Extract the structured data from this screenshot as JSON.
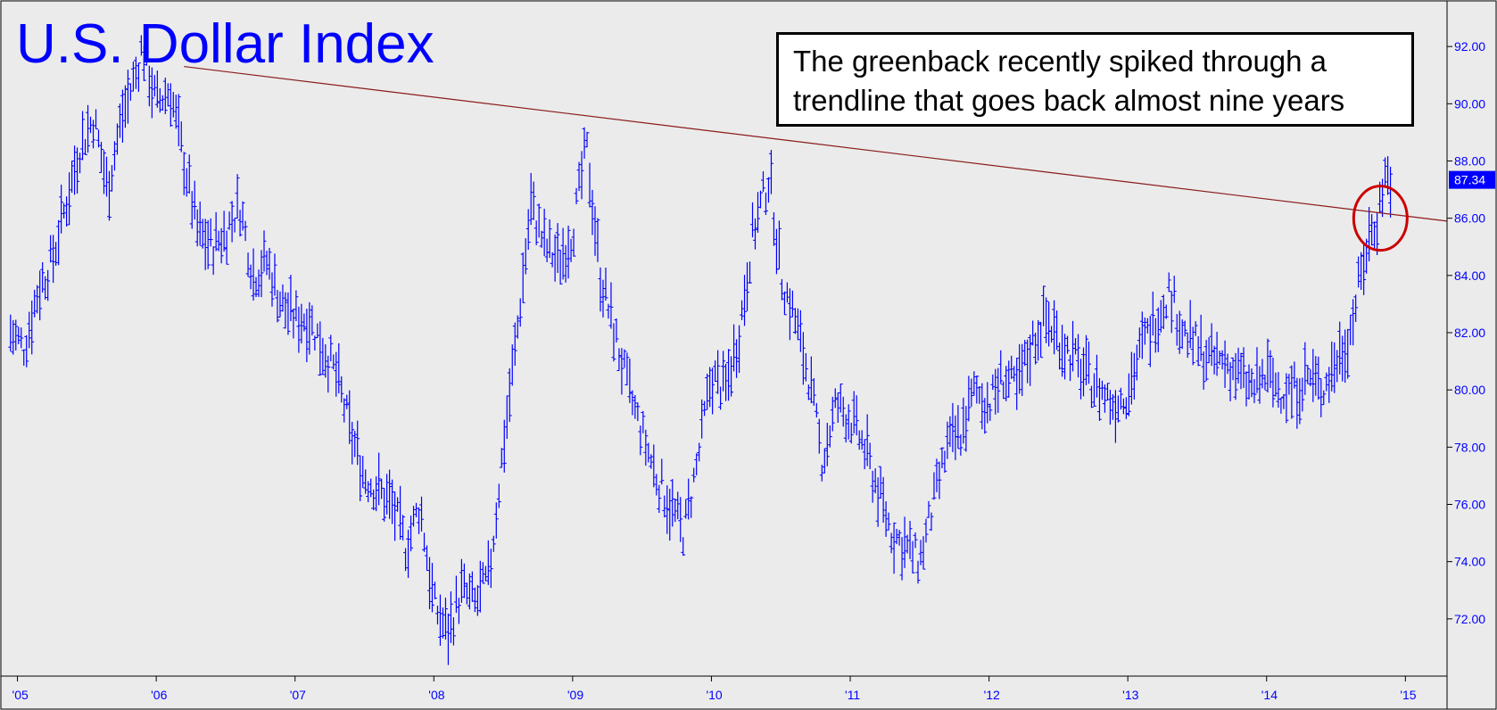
{
  "chart_data": {
    "type": "line",
    "title": "U.S. Dollar Index",
    "annotation": [
      "The greenback recently spiked through a",
      "trendline that goes back almost nine years"
    ],
    "xlabel": "",
    "ylabel": "",
    "x_ticks": [
      "'05",
      "'06",
      "'07",
      "'08",
      "'09",
      "'10",
      "'11",
      "'12",
      "'13",
      "'14",
      "'15"
    ],
    "y_ticks": [
      "72.00",
      "74.00",
      "76.00",
      "78.00",
      "80.00",
      "82.00",
      "84.00",
      "86.00",
      "88.00",
      "90.00",
      "92.00"
    ],
    "ylim": [
      70.0,
      93.5
    ],
    "xlim": [
      2004.9,
      2015.3
    ],
    "grid": false,
    "last_value_label": "87.34",
    "last_value": 87.34,
    "colors": {
      "series": "#0000ff",
      "trendline": "#8b1a1a",
      "circle": "#cc0000",
      "background": "#ebebeb",
      "last_value_badge": "#0000ff"
    },
    "series": [
      {
        "x": [
          2004.95,
          2005.05,
          2005.15,
          2005.25,
          2005.35,
          2005.45,
          2005.55,
          2005.65,
          2005.75,
          2005.85,
          2005.9,
          2006.0,
          2006.1,
          2006.2,
          2006.3,
          2006.4,
          2006.5,
          2006.6,
          2006.7,
          2006.8,
          2006.9,
          2007.0,
          2007.1,
          2007.2,
          2007.3,
          2007.4,
          2007.5,
          2007.6,
          2007.7,
          2007.8,
          2007.9,
          2008.0,
          2008.1,
          2008.2,
          2008.3,
          2008.4,
          2008.5,
          2008.6,
          2008.7,
          2008.8,
          2008.9,
          2009.0,
          2009.1,
          2009.2,
          2009.3,
          2009.4,
          2009.5,
          2009.6,
          2009.7,
          2009.8,
          2009.9,
          2010.0,
          2010.1,
          2010.2,
          2010.3,
          2010.42,
          2010.5,
          2010.6,
          2010.7,
          2010.8,
          2010.9,
          2011.0,
          2011.1,
          2011.2,
          2011.3,
          2011.4,
          2011.5,
          2011.6,
          2011.7,
          2011.8,
          2011.9,
          2012.0,
          2012.1,
          2012.2,
          2012.3,
          2012.4,
          2012.55,
          2012.7,
          2012.8,
          2012.9,
          2013.0,
          2013.1,
          2013.2,
          2013.3,
          2013.4,
          2013.5,
          2013.6,
          2013.7,
          2013.8,
          2013.9,
          2014.0,
          2014.1,
          2014.2,
          2014.3,
          2014.4,
          2014.5,
          2014.6,
          2014.7,
          2014.75,
          2014.8,
          2014.85,
          2014.9
        ],
        "y": [
          82.0,
          81.5,
          83.5,
          84.5,
          86.5,
          88.5,
          89.5,
          87.0,
          89.5,
          91.0,
          92.0,
          90.0,
          90.5,
          88.0,
          85.5,
          85.0,
          85.5,
          86.5,
          84.0,
          84.5,
          83.0,
          82.5,
          82.5,
          81.5,
          80.5,
          78.5,
          77.0,
          76.5,
          76.0,
          74.5,
          76.0,
          72.5,
          71.5,
          73.0,
          72.5,
          73.5,
          78.0,
          82.0,
          86.5,
          85.0,
          84.5,
          85.5,
          88.5,
          84.0,
          82.0,
          80.0,
          78.5,
          77.0,
          76.0,
          75.0,
          77.5,
          80.5,
          80.0,
          82.0,
          85.5,
          87.5,
          84.0,
          82.5,
          80.5,
          77.5,
          79.5,
          79.0,
          78.0,
          76.5,
          75.0,
          74.5,
          74.0,
          76.0,
          78.0,
          78.5,
          80.0,
          79.5,
          80.5,
          80.0,
          81.5,
          82.5,
          81.5,
          80.5,
          80.0,
          79.5,
          80.0,
          81.5,
          82.5,
          83.5,
          82.0,
          81.5,
          81.0,
          81.0,
          80.5,
          80.0,
          80.5,
          80.0,
          80.0,
          80.5,
          80.0,
          81.0,
          82.0,
          84.5,
          85.5,
          86.0,
          87.5,
          87.34
        ]
      }
    ],
    "trendline": {
      "x": [
        2006.2,
        2015.3
      ],
      "y": [
        91.3,
        85.9
      ]
    }
  }
}
